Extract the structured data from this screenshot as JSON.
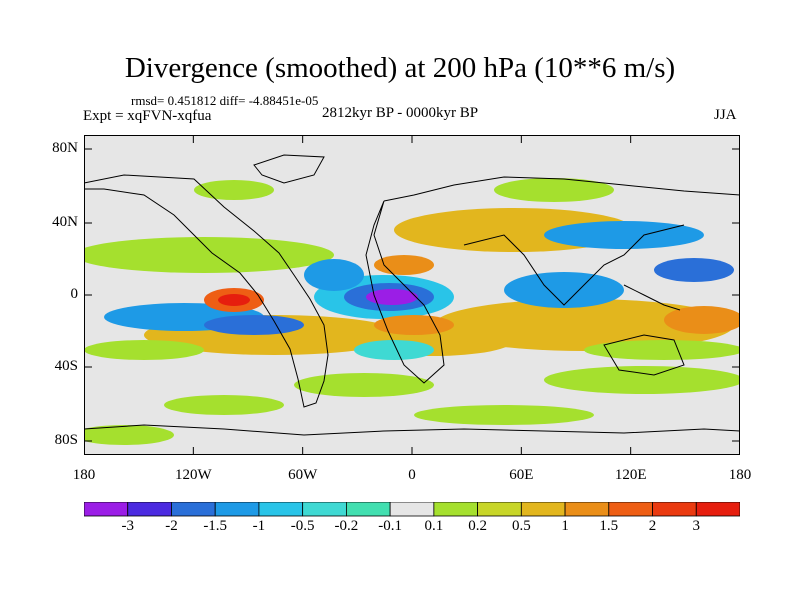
{
  "title": "Divergence (smoothed) at 200 hPa (10**6 m/s)",
  "stats": "rmsd= 0.451812 diff= -4.88451e-05",
  "expt": "Expt = xqFVN-xqfua",
  "period": "2812kyr BP - 0000kyr BP",
  "season": "JJA",
  "lat_ticks": [
    "80N",
    "40N",
    "0",
    "40S",
    "80S"
  ],
  "lon_ticks": [
    "180",
    "120W",
    "60W",
    "0",
    "60E",
    "120E",
    "180"
  ],
  "colorbar": {
    "labels": [
      "-3",
      "-2",
      "-1.5",
      "-1",
      "-0.5",
      "-0.2",
      "-0.1",
      "0.1",
      "0.2",
      "0.5",
      "1",
      "1.5",
      "2",
      "3"
    ],
    "colors": [
      "#9b1ee6",
      "#4b2ae0",
      "#2a6fd8",
      "#1e9ae6",
      "#29c4e8",
      "#3fd9d3",
      "#42dfb0",
      "#e6e6e6",
      "#a5e02e",
      "#c8d628",
      "#e2b61e",
      "#ea8e18",
      "#ee5e14",
      "#ea3a10",
      "#e61e0e"
    ]
  },
  "map_colors": {
    "ocean_bg": "#e6e6e6",
    "coast": "#000000"
  }
}
